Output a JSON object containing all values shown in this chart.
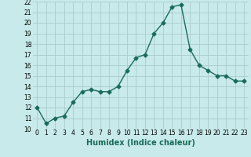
{
  "x": [
    0,
    1,
    2,
    3,
    4,
    5,
    6,
    7,
    8,
    9,
    10,
    11,
    12,
    13,
    14,
    15,
    16,
    17,
    18,
    19,
    20,
    21,
    22,
    23
  ],
  "y": [
    12.0,
    10.5,
    11.0,
    11.2,
    12.5,
    13.5,
    13.7,
    13.5,
    13.5,
    14.0,
    15.5,
    16.7,
    17.0,
    19.0,
    20.0,
    21.5,
    21.7,
    17.5,
    16.0,
    15.5,
    15.0,
    15.0,
    14.5,
    14.5
  ],
  "line_color": "#1a6b5a",
  "marker": "D",
  "marker_size": 2.5,
  "bg_color": "#c8eaea",
  "grid_color": "#aacccc",
  "xlabel": "Humidex (Indice chaleur)",
  "xlim": [
    -0.5,
    23.5
  ],
  "ylim": [
    10,
    22
  ],
  "yticks": [
    10,
    11,
    12,
    13,
    14,
    15,
    16,
    17,
    18,
    19,
    20,
    21,
    22
  ],
  "xticks": [
    0,
    1,
    2,
    3,
    4,
    5,
    6,
    7,
    8,
    9,
    10,
    11,
    12,
    13,
    14,
    15,
    16,
    17,
    18,
    19,
    20,
    21,
    22,
    23
  ],
  "tick_fontsize": 5.5,
  "xlabel_fontsize": 7,
  "line_width": 1.0
}
